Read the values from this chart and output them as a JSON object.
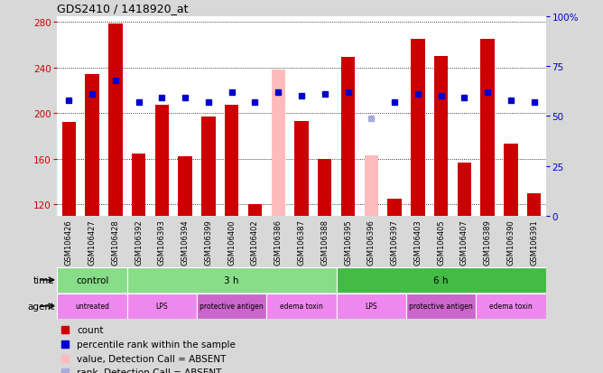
{
  "title": "GDS2410 / 1418920_at",
  "samples": [
    "GSM106426",
    "GSM106427",
    "GSM106428",
    "GSM106392",
    "GSM106393",
    "GSM106394",
    "GSM106399",
    "GSM106400",
    "GSM106402",
    "GSM106386",
    "GSM106387",
    "GSM106388",
    "GSM106395",
    "GSM106396",
    "GSM106397",
    "GSM106403",
    "GSM106405",
    "GSM106407",
    "GSM106389",
    "GSM106390",
    "GSM106391"
  ],
  "bar_values": [
    192,
    234,
    278,
    165,
    207,
    162,
    197,
    207,
    120,
    238,
    193,
    160,
    249,
    163,
    125,
    265,
    250,
    157,
    265,
    173,
    130
  ],
  "bar_absent": [
    false,
    false,
    false,
    false,
    false,
    false,
    false,
    false,
    false,
    true,
    false,
    false,
    false,
    true,
    false,
    false,
    false,
    false,
    false,
    false,
    false
  ],
  "rank_values": [
    58,
    61,
    68,
    57,
    59,
    59,
    57,
    62,
    57,
    62,
    60,
    61,
    62,
    49,
    57,
    61,
    60,
    59,
    62,
    58,
    57
  ],
  "rank_absent": [
    false,
    false,
    false,
    false,
    false,
    false,
    false,
    false,
    false,
    false,
    false,
    false,
    false,
    true,
    false,
    false,
    false,
    false,
    false,
    false,
    false
  ],
  "ylim_left": [
    110,
    285
  ],
  "ylim_right": [
    0,
    100
  ],
  "yticks_left": [
    120,
    160,
    200,
    240,
    280
  ],
  "yticks_right": [
    0,
    25,
    50,
    75,
    100
  ],
  "bar_color_normal": "#cc0000",
  "bar_color_absent": "#ffbbbb",
  "rank_color_normal": "#0000cc",
  "rank_color_absent": "#aaaadd",
  "background_color": "#d8d8d8",
  "plot_bg_color": "#ffffff",
  "time_green_light": "#88dd88",
  "time_green_dark": "#44bb44",
  "agent_pink_light": "#ee88ee",
  "agent_pink_dark": "#cc66cc",
  "legend_items": [
    {
      "label": "count",
      "color": "#cc0000"
    },
    {
      "label": "percentile rank within the sample",
      "color": "#0000cc"
    },
    {
      "label": "value, Detection Call = ABSENT",
      "color": "#ffbbbb"
    },
    {
      "label": "rank, Detection Call = ABSENT",
      "color": "#aaaadd"
    }
  ]
}
